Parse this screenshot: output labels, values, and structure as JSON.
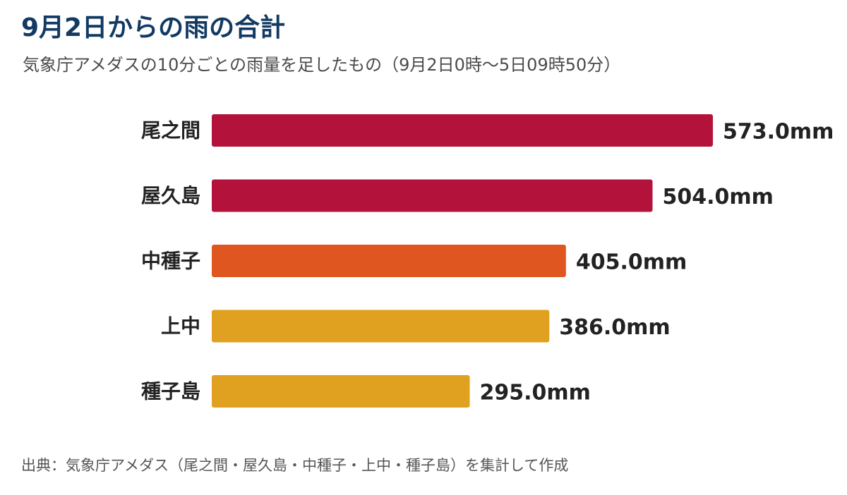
{
  "header": {
    "title": "9月2日からの雨の合計",
    "subtitle": "気象庁アメダスの10分ごとの雨量を足したもの（9月2日0時～5日09時50分）"
  },
  "footer": {
    "source": "出典：気象庁アメダス（尾之間・屋久島・中種子・上中・種子島）を集計して作成"
  },
  "chart_data": {
    "type": "bar",
    "orientation": "horizontal",
    "title": "9月2日からの雨の合計",
    "subtitle": "気象庁アメダスの10分ごとの雨量を足したもの（9月2日0時～5日09時50分）",
    "categories": [
      "尾之間",
      "屋久島",
      "中種子",
      "上中",
      "種子島"
    ],
    "values": [
      573.0,
      504.0,
      405.0,
      386.0,
      295.0
    ],
    "value_labels": [
      "573.0mm",
      "504.0mm",
      "405.0mm",
      "386.0mm",
      "295.0mm"
    ],
    "bar_colors": [
      "#b3133a",
      "#b3133a",
      "#df5620",
      "#e0a020",
      "#e0a020"
    ],
    "xlim": [
      0,
      573.0
    ],
    "grid": false,
    "legend": "none"
  }
}
